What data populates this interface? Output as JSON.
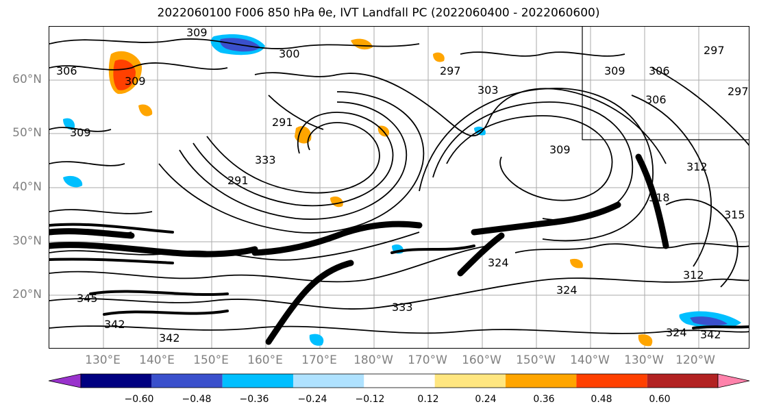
{
  "title": "2022060100 F006 850 hPa θe, IVT Landfall PC (2022060400 - 2022060600)",
  "lat_labels": [
    "60°N",
    "50°N",
    "40°N",
    "30°N",
    "20°N"
  ],
  "lon_labels": [
    "130°E",
    "140°E",
    "150°E",
    "160°E",
    "170°E",
    "180°W",
    "170°W",
    "160°W",
    "150°W",
    "140°W",
    "130°W",
    "120°W"
  ],
  "contour_labels": [
    "309",
    "300",
    "291",
    "297",
    "309",
    "306",
    "306",
    "297",
    "309",
    "291",
    "309",
    "303",
    "309",
    "297",
    "306",
    "312",
    "318",
    "315",
    "312",
    "324",
    "324",
    "333",
    "342",
    "342",
    "345",
    "333",
    "324",
    "342"
  ],
  "colorbar": {
    "colors": [
      "#9932cc",
      "#000080",
      "#3a50cc",
      "#00bfff",
      "#afe2ff",
      "#ffffff",
      "#ffe680",
      "#ffa500",
      "#ff4000",
      "#b22222",
      "#ff82ab"
    ],
    "tick_labels": [
      "−0.60",
      "−0.48",
      "−0.36",
      "−0.24",
      "−0.12",
      "0.12",
      "0.24",
      "0.36",
      "0.48",
      "0.60"
    ]
  }
}
